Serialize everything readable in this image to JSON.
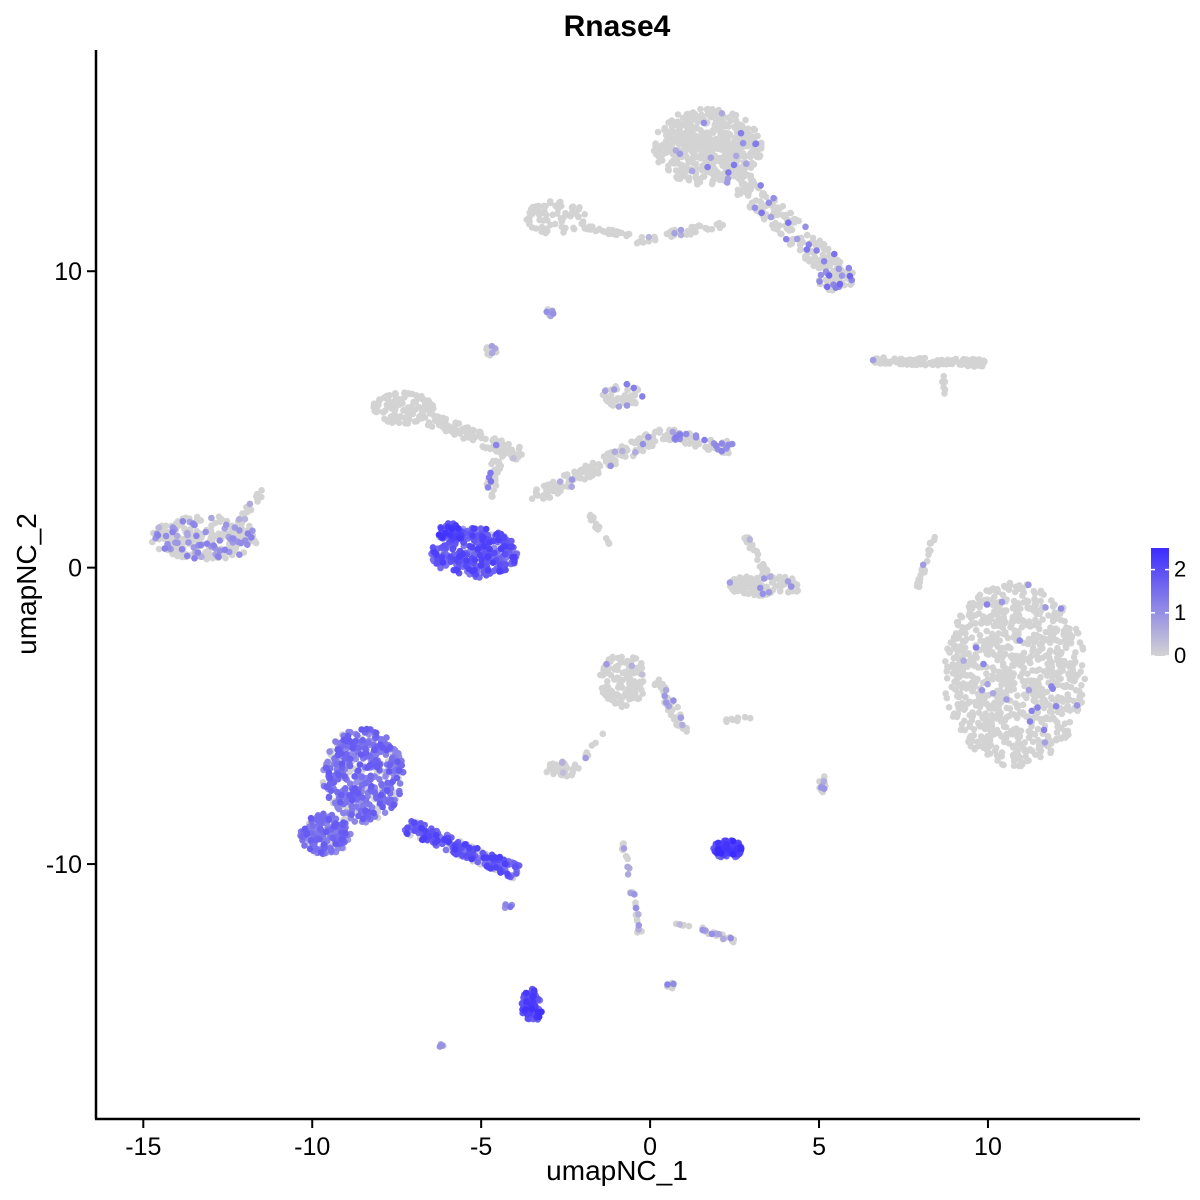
{
  "chart_data": {
    "type": "scatter",
    "title": "Rnase4",
    "xlabel": "umapNC_1",
    "ylabel": "umapNC_2",
    "xlim": [
      -16.4,
      14.5
    ],
    "ylim": [
      -18.6,
      17.8
    ],
    "x_ticks": [
      {
        "value": -15,
        "label": "-15"
      },
      {
        "value": -10,
        "label": "-10"
      },
      {
        "value": -5,
        "label": "-5"
      },
      {
        "value": 0,
        "label": "0"
      },
      {
        "value": 5,
        "label": "5"
      },
      {
        "value": 10,
        "label": "10"
      }
    ],
    "y_ticks": [
      {
        "value": -10,
        "label": "-10"
      },
      {
        "value": 0,
        "label": "0"
      },
      {
        "value": 10,
        "label": "10"
      }
    ],
    "grid": false,
    "legend": {
      "placement": "right",
      "type": "colorbar",
      "range": [
        0,
        2.5
      ],
      "ticks": [
        {
          "value": 0,
          "label": "0"
        },
        {
          "value": 1,
          "label": "1"
        },
        {
          "value": 2,
          "label": "2"
        }
      ],
      "low_color": "#D3D3D3",
      "high_color": "#3B2BFF"
    },
    "clusters": [
      {
        "shape": "ellipse",
        "cx": 10.8,
        "cy": -3.6,
        "rx": 2.1,
        "ry": 3.1,
        "n": 900,
        "expr": 0.02,
        "peak": 1.2
      },
      {
        "shape": "ellipse",
        "cx": 1.7,
        "cy": 14.2,
        "rx": 1.6,
        "ry": 1.3,
        "n": 500,
        "expr": 0.04,
        "peak": 1.3
      },
      {
        "shape": "line",
        "x0": 2.2,
        "y0": 13.5,
        "x1": 5.8,
        "y1": 9.7,
        "w": 0.75,
        "n": 220,
        "expr": 0.12,
        "peak": 1.6
      },
      {
        "shape": "ellipse",
        "cx": 5.5,
        "cy": 9.7,
        "rx": 0.5,
        "ry": 0.4,
        "n": 40,
        "expr": 0.45,
        "peak": 1.6
      },
      {
        "shape": "ellipse",
        "cx": -2.8,
        "cy": 11.8,
        "rx": 0.9,
        "ry": 0.6,
        "n": 70,
        "expr": 0.0,
        "peak": 0.3
      },
      {
        "shape": "line",
        "x0": -2.0,
        "y0": 11.5,
        "x1": -0.6,
        "y1": 11.2,
        "w": 0.15,
        "n": 25,
        "expr": 0.0,
        "peak": 0.3
      },
      {
        "shape": "line",
        "x0": -0.4,
        "y0": 11.0,
        "x1": 2.2,
        "y1": 11.6,
        "w": 0.25,
        "n": 40,
        "expr": 0.05,
        "peak": 1.0
      },
      {
        "shape": "ellipse",
        "cx": -3.0,
        "cy": 8.6,
        "rx": 0.15,
        "ry": 0.12,
        "n": 8,
        "expr": 0.3,
        "peak": 1.0
      },
      {
        "shape": "ellipse",
        "cx": -4.7,
        "cy": 7.3,
        "rx": 0.18,
        "ry": 0.2,
        "n": 10,
        "expr": 0.3,
        "peak": 1.0
      },
      {
        "shape": "line",
        "x0": 6.6,
        "y0": 7.0,
        "x1": 9.9,
        "y1": 6.9,
        "w": 0.25,
        "n": 110,
        "expr": 0.02,
        "peak": 1.0
      },
      {
        "shape": "line",
        "x0": 8.6,
        "y0": 6.6,
        "x1": 8.8,
        "y1": 5.7,
        "w": 0.12,
        "n": 6,
        "expr": 0.0,
        "peak": 0.3
      },
      {
        "shape": "ellipse",
        "cx": -7.3,
        "cy": 5.4,
        "rx": 0.9,
        "ry": 0.55,
        "n": 110,
        "expr": 0.0,
        "peak": 0.3
      },
      {
        "shape": "line",
        "x0": -6.5,
        "y0": 5.0,
        "x1": -3.8,
        "y1": 3.8,
        "w": 0.45,
        "n": 120,
        "expr": 0.02,
        "peak": 0.5
      },
      {
        "shape": "line",
        "x0": -4.4,
        "y0": 4.2,
        "x1": -4.8,
        "y1": 2.3,
        "w": 0.3,
        "n": 40,
        "expr": 0.1,
        "peak": 1.5
      },
      {
        "shape": "line",
        "x0": -3.5,
        "y0": 2.3,
        "x1": 0.5,
        "y1": 4.6,
        "w": 0.45,
        "n": 150,
        "expr": 0.08,
        "peak": 1.0
      },
      {
        "shape": "ellipse",
        "cx": -0.8,
        "cy": 5.8,
        "rx": 0.6,
        "ry": 0.4,
        "n": 45,
        "expr": 0.2,
        "peak": 1.3
      },
      {
        "shape": "line",
        "x0": 0.5,
        "y0": 4.5,
        "x1": 2.5,
        "y1": 4.0,
        "w": 0.45,
        "n": 70,
        "expr": 0.3,
        "peak": 1.3
      },
      {
        "shape": "line",
        "x0": -1.8,
        "y0": 1.8,
        "x1": -1.2,
        "y1": 0.7,
        "w": 0.12,
        "n": 14,
        "expr": 0.15,
        "peak": 1.0
      },
      {
        "shape": "ellipse",
        "cx": -13.2,
        "cy": 1.0,
        "rx": 1.6,
        "ry": 0.75,
        "n": 260,
        "expr": 0.25,
        "peak": 1.2
      },
      {
        "shape": "line",
        "x0": -12.2,
        "y0": 1.5,
        "x1": -11.4,
        "y1": 2.7,
        "w": 0.2,
        "n": 20,
        "expr": 0.1,
        "peak": 0.8
      },
      {
        "shape": "ellipse",
        "cx": -5.2,
        "cy": 0.5,
        "rx": 1.3,
        "ry": 0.85,
        "n": 320,
        "expr": 0.95,
        "peak": 2.2
      },
      {
        "shape": "ellipse",
        "cx": -5.9,
        "cy": 1.2,
        "rx": 0.45,
        "ry": 0.3,
        "n": 60,
        "expr": 0.95,
        "peak": 2.4
      },
      {
        "shape": "ellipse",
        "cx": 3.4,
        "cy": -0.6,
        "rx": 1.2,
        "ry": 0.35,
        "n": 110,
        "expr": 0.05,
        "peak": 1.0
      },
      {
        "shape": "line",
        "x0": 2.8,
        "y0": 1.1,
        "x1": 3.5,
        "y1": -0.4,
        "w": 0.2,
        "n": 25,
        "expr": 0.15,
        "peak": 1.0
      },
      {
        "shape": "line",
        "x0": 8.4,
        "y0": 1.1,
        "x1": 7.9,
        "y1": -0.8,
        "w": 0.12,
        "n": 25,
        "expr": 0.05,
        "peak": 1.0
      },
      {
        "shape": "ellipse",
        "cx": -0.8,
        "cy": -3.8,
        "rx": 0.7,
        "ry": 0.9,
        "n": 120,
        "expr": 0.02,
        "peak": 1.0
      },
      {
        "shape": "line",
        "x0": 0.2,
        "y0": -3.8,
        "x1": 1.1,
        "y1": -5.6,
        "w": 0.3,
        "n": 40,
        "expr": 0.1,
        "peak": 1.0
      },
      {
        "shape": "ellipse",
        "cx": -2.6,
        "cy": -6.8,
        "rx": 0.5,
        "ry": 0.25,
        "n": 35,
        "expr": 0.02,
        "peak": 0.5
      },
      {
        "shape": "line",
        "x0": -2.0,
        "y0": -6.5,
        "x1": -1.4,
        "y1": -5.6,
        "w": 0.1,
        "n": 8,
        "expr": 0.2,
        "peak": 1.0
      },
      {
        "shape": "line",
        "x0": 2.2,
        "y0": -5.2,
        "x1": 3.1,
        "y1": -5.0,
        "w": 0.12,
        "n": 10,
        "expr": 0.0,
        "peak": 0.3
      },
      {
        "shape": "ellipse",
        "cx": 5.1,
        "cy": -7.3,
        "rx": 0.15,
        "ry": 0.3,
        "n": 14,
        "expr": 0.4,
        "peak": 1.0
      },
      {
        "shape": "ellipse",
        "cx": -8.5,
        "cy": -7.0,
        "rx": 1.2,
        "ry": 1.6,
        "n": 480,
        "expr": 0.75,
        "peak": 1.8
      },
      {
        "shape": "ellipse",
        "cx": -9.6,
        "cy": -9.0,
        "rx": 0.75,
        "ry": 0.7,
        "n": 180,
        "expr": 0.75,
        "peak": 1.8
      },
      {
        "shape": "line",
        "x0": -7.2,
        "y0": -8.7,
        "x1": -3.9,
        "y1": -10.3,
        "w": 0.5,
        "n": 260,
        "expr": 0.7,
        "peak": 2.2
      },
      {
        "shape": "ellipse",
        "cx": 2.3,
        "cy": -9.5,
        "rx": 0.45,
        "ry": 0.3,
        "n": 100,
        "expr": 1.35,
        "peak": 2.5
      },
      {
        "shape": "line",
        "x0": -0.8,
        "y0": -9.3,
        "x1": -0.3,
        "y1": -12.3,
        "w": 0.15,
        "n": 30,
        "expr": 0.3,
        "peak": 1.0
      },
      {
        "shape": "line",
        "x0": 1.5,
        "y0": -12.2,
        "x1": 2.5,
        "y1": -12.6,
        "w": 0.15,
        "n": 20,
        "expr": 0.35,
        "peak": 1.0
      },
      {
        "shape": "line",
        "x0": 0.5,
        "y0": -12.0,
        "x1": 1.2,
        "y1": -12.1,
        "w": 0.08,
        "n": 6,
        "expr": 0.1,
        "peak": 0.5
      },
      {
        "shape": "ellipse",
        "cx": -3.5,
        "cy": -14.8,
        "rx": 0.3,
        "ry": 0.6,
        "n": 80,
        "expr": 1.3,
        "peak": 2.4
      },
      {
        "shape": "ellipse",
        "cx": 0.6,
        "cy": -14.1,
        "rx": 0.12,
        "ry": 0.1,
        "n": 10,
        "expr": 0.5,
        "peak": 1.2
      },
      {
        "shape": "ellipse",
        "cx": -6.2,
        "cy": -16.1,
        "rx": 0.12,
        "ry": 0.08,
        "n": 6,
        "expr": 0.6,
        "peak": 1.2
      },
      {
        "shape": "ellipse",
        "cx": -4.2,
        "cy": -11.4,
        "rx": 0.2,
        "ry": 0.12,
        "n": 4,
        "expr": 0.8,
        "peak": 1.5
      }
    ]
  }
}
